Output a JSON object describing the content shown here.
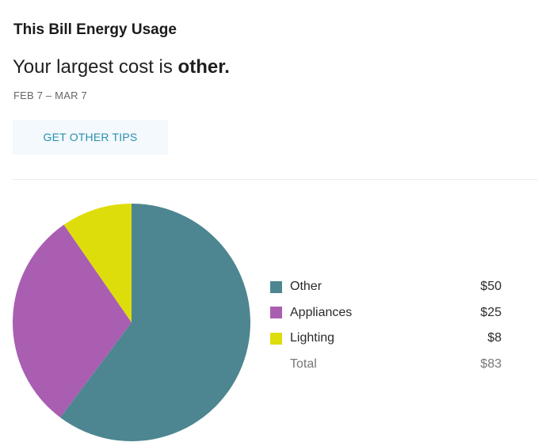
{
  "card": {
    "title": "This Bill Energy Usage",
    "headline_prefix": "Your largest cost is ",
    "headline_emphasis": "other.",
    "date_range": "FEB 7 – MAR 7",
    "tips_button_label": "GET OTHER TIPS"
  },
  "legend": {
    "items": [
      {
        "label": "Other",
        "value": "$50",
        "color": "#4d8690"
      },
      {
        "label": "Appliances",
        "value": "$25",
        "color": "#a95eb2"
      },
      {
        "label": "Lighting",
        "value": "$8",
        "color": "#dedd0c"
      }
    ],
    "total_label": "Total",
    "total_value": "$83"
  },
  "chart_data": {
    "type": "pie",
    "categories": [
      "Other",
      "Appliances",
      "Lighting"
    ],
    "values": [
      50,
      25,
      8
    ],
    "colors": [
      "#4d8690",
      "#a95eb2",
      "#dedd0c"
    ],
    "total": 83,
    "title": "",
    "legend_position": "right"
  }
}
